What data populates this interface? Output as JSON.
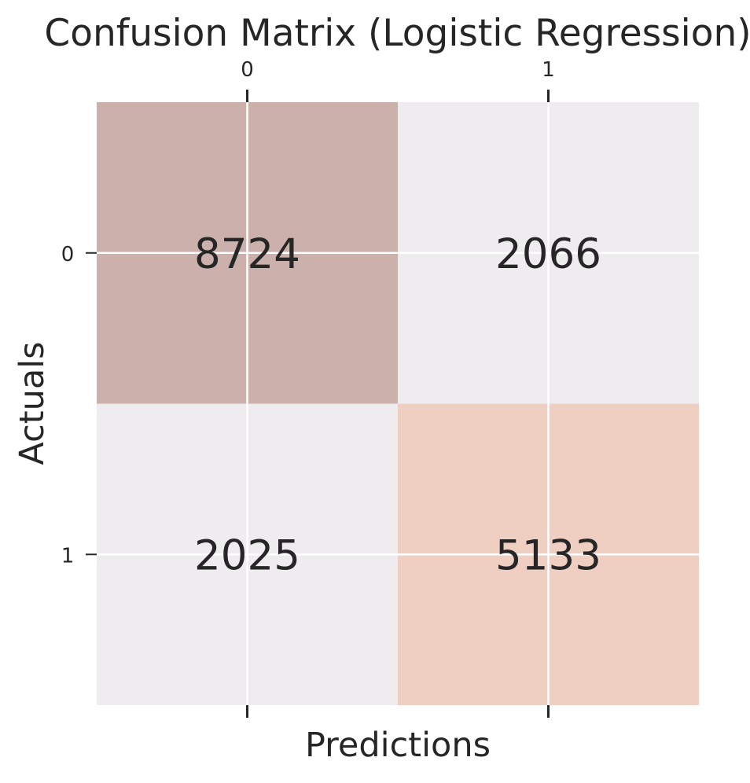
{
  "chart_data": {
    "type": "heatmap",
    "title": "Confusion Matrix (Logistic Regression)",
    "xlabel": "Predictions",
    "ylabel": "Actuals",
    "x_categories": [
      "0",
      "1"
    ],
    "y_categories": [
      "0",
      "1"
    ],
    "values": [
      [
        8724,
        2066
      ],
      [
        2025,
        5133
      ]
    ],
    "cell_colors": [
      [
        "#cbb0ab",
        "#eeecee"
      ],
      [
        "#eeecee",
        "#eecfc1"
      ]
    ],
    "grid": true,
    "x_ticks_position": "top"
  }
}
